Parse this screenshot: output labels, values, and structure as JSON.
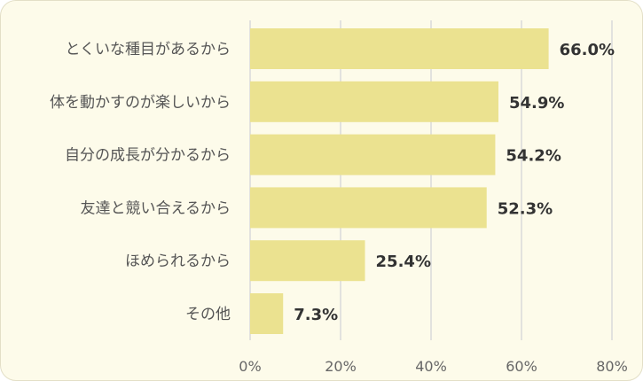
{
  "colors": {
    "bar": "#ebe290",
    "grid": "#d9d9d9",
    "background": "#fdfbea"
  },
  "chart_data": {
    "type": "bar",
    "orientation": "horizontal",
    "categories": [
      "とくいな種目があるから",
      "体を動かすのが楽しいから",
      "自分の成長が分かるから",
      "友達と競い合えるから",
      "ほめられるから",
      "その他"
    ],
    "values": [
      66.0,
      54.9,
      54.2,
      52.3,
      25.4,
      7.3
    ],
    "value_labels": [
      "66.0%",
      "54.9%",
      "54.2%",
      "52.3%",
      "25.4%",
      "7.3%"
    ],
    "xlim": [
      0,
      80
    ],
    "x_ticks": [
      0,
      20,
      40,
      60,
      80
    ],
    "x_tick_labels": [
      "0%",
      "20%",
      "40%",
      "60%",
      "80%"
    ],
    "grid": true,
    "legend": false
  }
}
